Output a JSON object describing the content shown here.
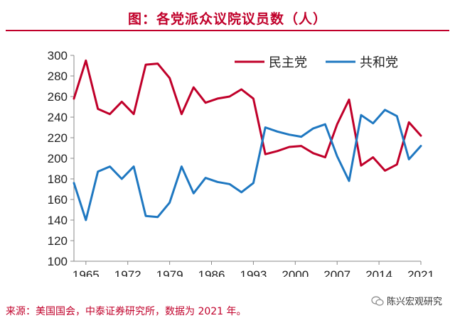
{
  "header": {
    "title": "图：各党派众议院议员数（人）"
  },
  "footer": {
    "source": "来源：美国国会，中泰证券研究所，数据为 2021 年。"
  },
  "watermark": {
    "text": "陈兴宏观研究",
    "icon": "wechat-logo-icon"
  },
  "colors": {
    "accent": "#c0002a",
    "democrat": "#c0002a",
    "republican": "#1f78c1"
  },
  "chart_data": {
    "type": "line",
    "title": "图：各党派众议院议员数（人）",
    "xlabel": "",
    "ylabel": "",
    "x": [
      1963,
      1965,
      1967,
      1969,
      1971,
      1973,
      1975,
      1977,
      1979,
      1981,
      1983,
      1985,
      1987,
      1989,
      1991,
      1993,
      1995,
      1997,
      1999,
      2001,
      2003,
      2005,
      2007,
      2009,
      2011,
      2013,
      2015,
      2017,
      2019,
      2021
    ],
    "series": [
      {
        "name": "民主党",
        "color": "#c0002a",
        "values": [
          258,
          295,
          248,
          243,
          255,
          243,
          291,
          292,
          278,
          243,
          269,
          254,
          258,
          260,
          267,
          258,
          204,
          207,
          211,
          212,
          205,
          201,
          233,
          257,
          193,
          201,
          188,
          194,
          235,
          222
        ]
      },
      {
        "name": "共和党",
        "color": "#1f78c1",
        "values": [
          176,
          140,
          187,
          192,
          180,
          192,
          144,
          143,
          157,
          192,
          166,
          181,
          177,
          175,
          167,
          176,
          230,
          226,
          223,
          221,
          229,
          233,
          202,
          178,
          242,
          234,
          247,
          241,
          199,
          212
        ]
      }
    ],
    "xticks": [
      "1965",
      "1972",
      "1979",
      "1986",
      "1993",
      "2000",
      "2007",
      "2014",
      "2021"
    ],
    "xtick_values": [
      1965,
      1972,
      1979,
      1986,
      1993,
      2000,
      2007,
      2014,
      2021
    ],
    "yticks": [
      "100",
      "120",
      "140",
      "160",
      "180",
      "200",
      "220",
      "240",
      "260",
      "280",
      "300"
    ],
    "ylim": [
      100,
      300
    ],
    "xlim": [
      1963,
      2021
    ],
    "grid": false,
    "legend": "top-right"
  }
}
